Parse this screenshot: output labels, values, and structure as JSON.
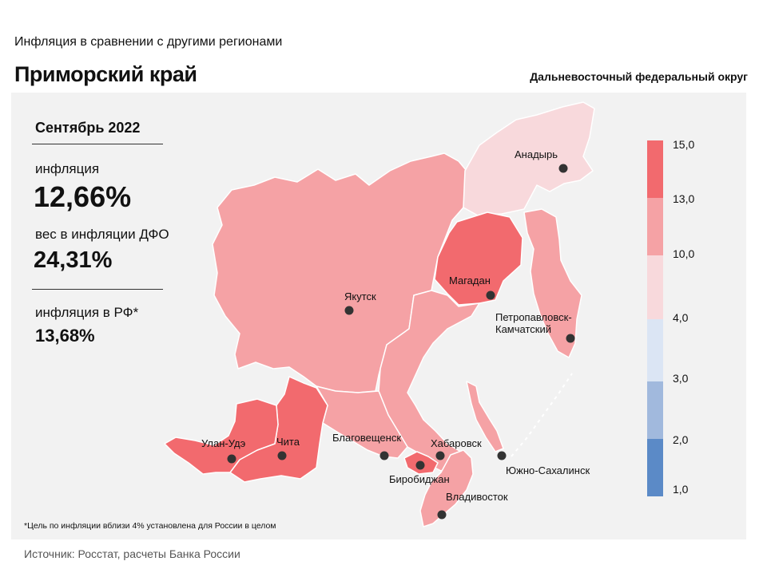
{
  "header": {
    "subtitle": "Инфляция  в сравнении  с другими  регионами",
    "title": "Приморский край",
    "district": "Дальневосточный федеральный округ"
  },
  "stats": {
    "month": "Сентябрь 2022",
    "inflation_label": "инфляция",
    "inflation_value": "12,66%",
    "weight_label": "вес в инфляции  ДФО",
    "weight_value": "24,31%",
    "rf_label": "инфляция  в РФ*",
    "rf_value": "13,68%"
  },
  "map": {
    "cities": [
      {
        "name": "Анадырь"
      },
      {
        "name": "Магадан"
      },
      {
        "name": "Якутск"
      },
      {
        "name": "Петропавловск-\nКамчатский"
      },
      {
        "name": "Улан-Удэ"
      },
      {
        "name": "Чита"
      },
      {
        "name": "Благовещенск"
      },
      {
        "name": "Хабаровск"
      },
      {
        "name": "Южно-Сахалинск"
      },
      {
        "name": "Биробиджан"
      },
      {
        "name": "Владивосток"
      }
    ],
    "colors": {
      "band_13_15": "#f26a6e",
      "band_10_13": "#f5a2a5",
      "band_4_10": "#f8d9dc",
      "band_3_4": "#dbe5f4",
      "band_2_3": "#a1b9dd",
      "band_1_2": "#5b8ac7"
    }
  },
  "legend": {
    "ticks": [
      "15,0",
      "13,0",
      "10,0",
      "4,0",
      "3,0",
      "2,0",
      "1,0"
    ]
  },
  "footnote": "*Цель по инфляции вблизи 4% установлена для России в целом",
  "source": "Источник: Росстат, расчеты  Банка  России"
}
